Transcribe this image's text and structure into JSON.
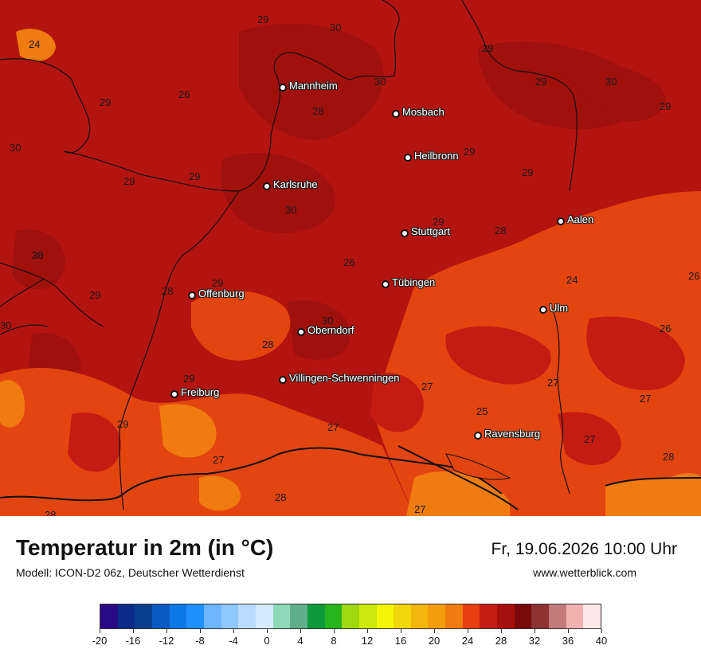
{
  "title": "Temperatur in 2m (in °C)",
  "model": "Modell: ICON-D2 06z, Deutscher Wetterdienst",
  "datetime": "Fr, 19.06.2026 10:00 Uhr",
  "site": "www.wetterblick.com",
  "cities": [
    {
      "name": "Mannheim"
    },
    {
      "name": "Mosbach"
    },
    {
      "name": "Heilbronn"
    },
    {
      "name": "Karlsruhe"
    },
    {
      "name": "Stuttgart"
    },
    {
      "name": "Aalen"
    },
    {
      "name": "Tübingen"
    },
    {
      "name": "Offenburg"
    },
    {
      "name": "Ulm"
    },
    {
      "name": "Oberndorf"
    },
    {
      "name": "Villingen-Schwenningen"
    },
    {
      "name": "Freiburg"
    },
    {
      "name": "Ravensburg"
    }
  ],
  "values": [
    "29",
    "30",
    "24",
    "29",
    "30",
    "29",
    "30",
    "29",
    "26",
    "29",
    "28",
    "29",
    "29",
    "30",
    "29",
    "29",
    "30",
    "26",
    "24",
    "26",
    "29",
    "28",
    "29",
    "30",
    "26",
    "28",
    "30",
    "29",
    "30",
    "27",
    "27",
    "25",
    "27",
    "29",
    "27",
    "27",
    "28",
    "28",
    "27",
    "29",
    "28",
    "27",
    "26",
    "28"
  ],
  "colorbar": {
    "colors": [
      "#2b0a87",
      "#0b2c8a",
      "#0a3f8f",
      "#0a5cc2",
      "#0b78e6",
      "#1e90ff",
      "#6db5ff",
      "#8ec8ff",
      "#b8dcff",
      "#d6eaff",
      "#8fd8b8",
      "#5fae8a",
      "#0e9a3a",
      "#26b51a",
      "#9fd80f",
      "#cde80c",
      "#f5f50a",
      "#f2d60c",
      "#f2b60c",
      "#f59c0c",
      "#f07b10",
      "#e83e12",
      "#c41c12",
      "#a8100e",
      "#7a0a0a",
      "#8c3230",
      "#c47a78",
      "#f2b2b0",
      "#fde6e8"
    ],
    "tick_labels": [
      "-20",
      "-16",
      "-12",
      "-8",
      "-4",
      "0",
      "4",
      "8",
      "12",
      "16",
      "20",
      "24",
      "28",
      "32",
      "36",
      "40"
    ]
  },
  "legend_colors": {
    "hot": "#b4140f",
    "warm": "#e34510",
    "mild": "#f07b10",
    "border": "#111111"
  }
}
